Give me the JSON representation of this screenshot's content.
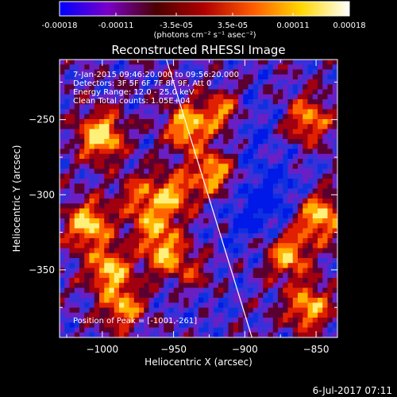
{
  "colorbar": {
    "ticks": [
      "-0.00018",
      "-0.00011",
      "-3.5e-05",
      "3.5e-05",
      "0.00011",
      "0.00018"
    ],
    "tick_values": [
      -0.00018,
      -0.00011,
      -3.5e-05,
      3.5e-05,
      0.00011,
      0.00018
    ],
    "range": [
      -0.00018,
      0.00018
    ],
    "unit_label": "(photons cm⁻² s⁻¹ asec⁻²)",
    "stops": [
      "#0000ff",
      "#7a00c8",
      "#4a0000",
      "#b00000",
      "#ff5a00",
      "#ffd800",
      "#ffffff"
    ]
  },
  "chart_data": {
    "type": "heatmap",
    "title": "Reconstructed RHESSI Image",
    "xlabel": "Heliocentric X (arcsec)",
    "ylabel": "Heliocentric Y (arcsec)",
    "xlim": [
      -1030,
      -835
    ],
    "ylim": [
      -395,
      -210
    ],
    "xticks": [
      -1000,
      -950,
      -900,
      -850
    ],
    "xtick_labels": [
      "−1000",
      "−950",
      "−900",
      "−850"
    ],
    "yticks": [
      -250,
      -300,
      -350
    ],
    "ytick_labels": [
      "−250",
      "−300",
      "−350"
    ],
    "info_lines": [
      "7-Jan-2015 09:46:20.000 to 09:56:20.000",
      "Detectors: 3F 5F 6F 7F 8F 9F, Att 0",
      "Energy Range: 12.0 - 25.0 keV",
      "Clean     Total counts: 1.05E+04"
    ],
    "peak_label": "Position of Peak = [-1001,-261]",
    "peak": [
      -1001,
      -261
    ],
    "limb_line": [
      [
        -955,
        -210
      ],
      [
        -895,
        -395
      ]
    ],
    "bright_sources": [
      {
        "x": -1001,
        "y": -261,
        "amp": 1.0
      },
      {
        "x": -1010,
        "y": -320,
        "amp": 0.9
      },
      {
        "x": -995,
        "y": -350,
        "amp": 0.8
      },
      {
        "x": -985,
        "y": -375,
        "amp": 0.7
      },
      {
        "x": -940,
        "y": -255,
        "amp": 0.85
      },
      {
        "x": -915,
        "y": -245,
        "amp": 0.85
      },
      {
        "x": -922,
        "y": -285,
        "amp": 0.8
      },
      {
        "x": -950,
        "y": -300,
        "amp": 0.7
      },
      {
        "x": -955,
        "y": -340,
        "amp": 0.75
      },
      {
        "x": -935,
        "y": -355,
        "amp": 0.55
      },
      {
        "x": -855,
        "y": -250,
        "amp": 0.7
      },
      {
        "x": -848,
        "y": -315,
        "amp": 0.9
      },
      {
        "x": -870,
        "y": -340,
        "amp": 0.8
      },
      {
        "x": -855,
        "y": -375,
        "amp": 0.8
      },
      {
        "x": -975,
        "y": -300,
        "amp": 0.45
      },
      {
        "x": -965,
        "y": -320,
        "amp": 0.55
      }
    ],
    "dark_sources": [
      {
        "x": -905,
        "y": -250,
        "amp": 0.7
      },
      {
        "x": -895,
        "y": -315,
        "amp": 0.6
      },
      {
        "x": -935,
        "y": -360,
        "amp": 0.55
      },
      {
        "x": -880,
        "y": -295,
        "amp": 0.5
      }
    ]
  },
  "footer": {
    "timestamp": "6-Jul-2017 07:11"
  }
}
